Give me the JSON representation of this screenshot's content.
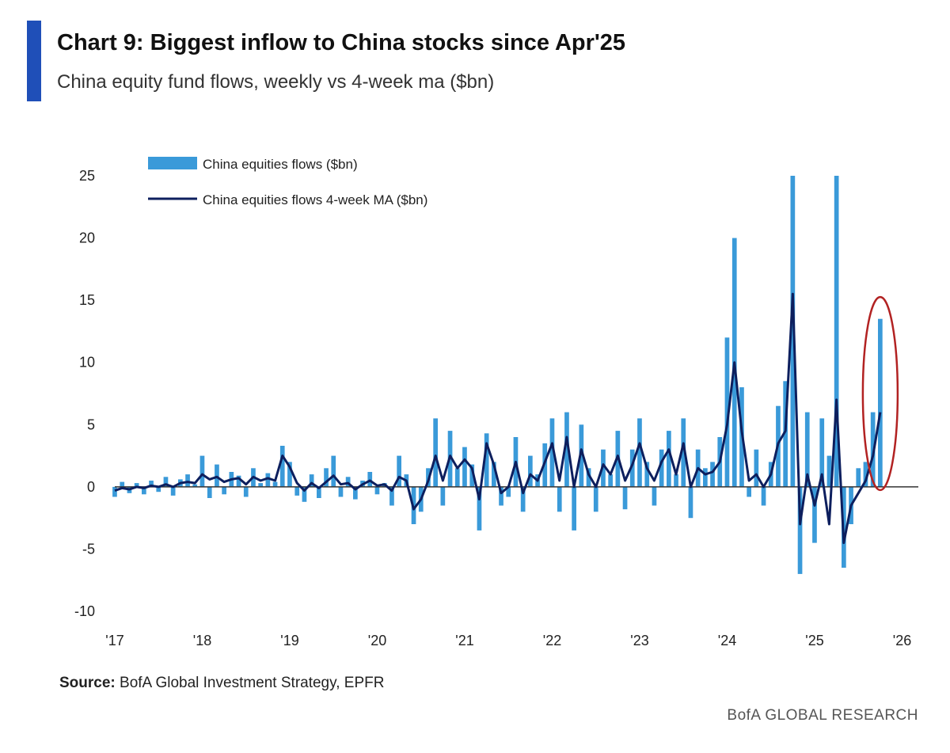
{
  "header": {
    "title": "Chart 9: Biggest inflow to China stocks since Apr'25",
    "subtitle": "China equity fund flows, weekly vs 4-week ma ($bn)",
    "accent_color": "#1f4fb8"
  },
  "footer": {
    "source_label": "Source:",
    "source_text": " BofA Global Investment Strategy, EPFR",
    "brand": "BofA GLOBAL RESEARCH"
  },
  "chart_data": {
    "type": "bar",
    "title": "Chart 9: Biggest inflow to China stocks since Apr'25",
    "subtitle": "China equity fund flows, weekly vs 4-week ma ($bn)",
    "xlabel": "",
    "ylabel": "",
    "ylim": [
      -10,
      25
    ],
    "xlim": [
      "2017-01",
      "2026-06"
    ],
    "y_ticks": [
      "25",
      "20",
      "15",
      "10",
      "5",
      "0",
      "-5",
      "-10"
    ],
    "x_ticks": [
      "'17",
      "'18",
      "'19",
      "'20",
      "'21",
      "'22",
      "'23",
      "'24",
      "'25",
      "'26"
    ],
    "grid": false,
    "legend_position": "top-left",
    "colors": {
      "weekly": "#3a9ad9",
      "ma": "#0d1f5e",
      "highlight": "#b22222"
    },
    "annotation": {
      "type": "ellipse-highlight",
      "x": "2025-10",
      "y_range": [
        0,
        15
      ]
    },
    "series": [
      {
        "name": "China equities flows ($bn)",
        "kind": "bar",
        "points": [
          [
            "2017-01",
            -0.8
          ],
          [
            "2017-02",
            0.4
          ],
          [
            "2017-03",
            -0.5
          ],
          [
            "2017-04",
            0.3
          ],
          [
            "2017-05",
            -0.6
          ],
          [
            "2017-06",
            0.5
          ],
          [
            "2017-07",
            -0.4
          ],
          [
            "2017-08",
            0.8
          ],
          [
            "2017-09",
            -0.7
          ],
          [
            "2017-10",
            0.6
          ],
          [
            "2017-11",
            1.0
          ],
          [
            "2017-12",
            0.2
          ],
          [
            "2018-01",
            2.5
          ],
          [
            "2018-02",
            -0.9
          ],
          [
            "2018-03",
            1.8
          ],
          [
            "2018-04",
            -0.6
          ],
          [
            "2018-05",
            1.2
          ],
          [
            "2018-06",
            0.9
          ],
          [
            "2018-07",
            -0.8
          ],
          [
            "2018-08",
            1.5
          ],
          [
            "2018-09",
            0.3
          ],
          [
            "2018-10",
            1.1
          ],
          [
            "2018-11",
            0.4
          ],
          [
            "2018-12",
            3.3
          ],
          [
            "2019-01",
            2.0
          ],
          [
            "2019-02",
            -0.7
          ],
          [
            "2019-03",
            -1.2
          ],
          [
            "2019-04",
            1.0
          ],
          [
            "2019-05",
            -0.9
          ],
          [
            "2019-06",
            1.5
          ],
          [
            "2019-07",
            2.5
          ],
          [
            "2019-08",
            -0.8
          ],
          [
            "2019-09",
            0.8
          ],
          [
            "2019-10",
            -1.0
          ],
          [
            "2019-11",
            0.5
          ],
          [
            "2019-12",
            1.2
          ],
          [
            "2020-01",
            -0.6
          ],
          [
            "2020-02",
            0.3
          ],
          [
            "2020-03",
            -1.5
          ],
          [
            "2020-04",
            2.5
          ],
          [
            "2020-05",
            1.0
          ],
          [
            "2020-06",
            -3.0
          ],
          [
            "2020-07",
            -2.0
          ],
          [
            "2020-08",
            1.5
          ],
          [
            "2020-09",
            5.5
          ],
          [
            "2020-10",
            -1.5
          ],
          [
            "2020-11",
            4.5
          ],
          [
            "2020-12",
            1.5
          ],
          [
            "2021-01",
            3.2
          ],
          [
            "2021-02",
            1.8
          ],
          [
            "2021-03",
            -3.5
          ],
          [
            "2021-04",
            4.3
          ],
          [
            "2021-05",
            2.0
          ],
          [
            "2021-06",
            -1.5
          ],
          [
            "2021-07",
            -0.8
          ],
          [
            "2021-08",
            4.0
          ],
          [
            "2021-09",
            -2.0
          ],
          [
            "2021-10",
            2.5
          ],
          [
            "2021-11",
            1.0
          ],
          [
            "2021-12",
            3.5
          ],
          [
            "2022-01",
            5.5
          ],
          [
            "2022-02",
            -2.0
          ],
          [
            "2022-03",
            6.0
          ],
          [
            "2022-04",
            -3.5
          ],
          [
            "2022-05",
            5.0
          ],
          [
            "2022-06",
            1.5
          ],
          [
            "2022-07",
            -2.0
          ],
          [
            "2022-08",
            3.0
          ],
          [
            "2022-09",
            1.0
          ],
          [
            "2022-10",
            4.5
          ],
          [
            "2022-11",
            -1.8
          ],
          [
            "2022-12",
            3.0
          ],
          [
            "2023-01",
            5.5
          ],
          [
            "2023-02",
            2.0
          ],
          [
            "2023-03",
            -1.5
          ],
          [
            "2023-04",
            3.0
          ],
          [
            "2023-05",
            4.5
          ],
          [
            "2023-06",
            1.0
          ],
          [
            "2023-07",
            5.5
          ],
          [
            "2023-08",
            -2.5
          ],
          [
            "2023-09",
            3.0
          ],
          [
            "2023-10",
            1.5
          ],
          [
            "2023-11",
            2.0
          ],
          [
            "2023-12",
            4.0
          ],
          [
            "2024-01",
            12.0
          ],
          [
            "2024-02",
            20.0
          ],
          [
            "2024-03",
            8.0
          ],
          [
            "2024-04",
            -0.8
          ],
          [
            "2024-05",
            3.0
          ],
          [
            "2024-06",
            -1.5
          ],
          [
            "2024-07",
            2.0
          ],
          [
            "2024-08",
            6.5
          ],
          [
            "2024-09",
            8.5
          ],
          [
            "2024-10",
            25.0
          ],
          [
            "2024-11",
            -7.0
          ],
          [
            "2024-12",
            6.0
          ],
          [
            "2025-01",
            -4.5
          ],
          [
            "2025-02",
            5.5
          ],
          [
            "2025-03",
            2.5
          ],
          [
            "2025-04",
            25.0
          ],
          [
            "2025-05",
            -6.5
          ],
          [
            "2025-06",
            -3.0
          ],
          [
            "2025-07",
            1.5
          ],
          [
            "2025-08",
            2.0
          ],
          [
            "2025-09",
            6.0
          ],
          [
            "2025-10",
            13.5
          ]
        ]
      },
      {
        "name": "China equities flows 4-week MA ($bn)",
        "kind": "line",
        "points": [
          [
            "2017-01",
            -0.3
          ],
          [
            "2017-02",
            -0.1
          ],
          [
            "2017-03",
            -0.2
          ],
          [
            "2017-04",
            0.0
          ],
          [
            "2017-05",
            -0.1
          ],
          [
            "2017-06",
            0.1
          ],
          [
            "2017-07",
            0.0
          ],
          [
            "2017-08",
            0.2
          ],
          [
            "2017-09",
            0.0
          ],
          [
            "2017-10",
            0.3
          ],
          [
            "2017-11",
            0.4
          ],
          [
            "2017-12",
            0.3
          ],
          [
            "2018-01",
            1.0
          ],
          [
            "2018-02",
            0.6
          ],
          [
            "2018-03",
            0.8
          ],
          [
            "2018-04",
            0.4
          ],
          [
            "2018-05",
            0.6
          ],
          [
            "2018-06",
            0.7
          ],
          [
            "2018-07",
            0.2
          ],
          [
            "2018-08",
            0.8
          ],
          [
            "2018-09",
            0.5
          ],
          [
            "2018-10",
            0.7
          ],
          [
            "2018-11",
            0.5
          ],
          [
            "2018-12",
            2.5
          ],
          [
            "2019-01",
            1.6
          ],
          [
            "2019-02",
            0.3
          ],
          [
            "2019-03",
            -0.3
          ],
          [
            "2019-04",
            0.3
          ],
          [
            "2019-05",
            -0.1
          ],
          [
            "2019-06",
            0.4
          ],
          [
            "2019-07",
            0.9
          ],
          [
            "2019-08",
            0.2
          ],
          [
            "2019-09",
            0.3
          ],
          [
            "2019-10",
            -0.2
          ],
          [
            "2019-11",
            0.2
          ],
          [
            "2019-12",
            0.5
          ],
          [
            "2020-01",
            0.1
          ],
          [
            "2020-02",
            0.2
          ],
          [
            "2020-03",
            -0.3
          ],
          [
            "2020-04",
            0.8
          ],
          [
            "2020-05",
            0.5
          ],
          [
            "2020-06",
            -1.8
          ],
          [
            "2020-07",
            -1.0
          ],
          [
            "2020-08",
            0.5
          ],
          [
            "2020-09",
            2.5
          ],
          [
            "2020-10",
            0.5
          ],
          [
            "2020-11",
            2.5
          ],
          [
            "2020-12",
            1.5
          ],
          [
            "2021-01",
            2.2
          ],
          [
            "2021-02",
            1.5
          ],
          [
            "2021-03",
            -1.0
          ],
          [
            "2021-04",
            3.5
          ],
          [
            "2021-05",
            1.8
          ],
          [
            "2021-06",
            -0.5
          ],
          [
            "2021-07",
            0.0
          ],
          [
            "2021-08",
            2.0
          ],
          [
            "2021-09",
            -0.5
          ],
          [
            "2021-10",
            1.0
          ],
          [
            "2021-11",
            0.5
          ],
          [
            "2021-12",
            2.0
          ],
          [
            "2022-01",
            3.5
          ],
          [
            "2022-02",
            0.5
          ],
          [
            "2022-03",
            4.0
          ],
          [
            "2022-04",
            0.0
          ],
          [
            "2022-05",
            3.0
          ],
          [
            "2022-06",
            1.0
          ],
          [
            "2022-07",
            0.0
          ],
          [
            "2022-08",
            1.8
          ],
          [
            "2022-09",
            1.0
          ],
          [
            "2022-10",
            2.5
          ],
          [
            "2022-11",
            0.5
          ],
          [
            "2022-12",
            1.8
          ],
          [
            "2023-01",
            3.5
          ],
          [
            "2023-02",
            1.5
          ],
          [
            "2023-03",
            0.5
          ],
          [
            "2023-04",
            2.0
          ],
          [
            "2023-05",
            3.0
          ],
          [
            "2023-06",
            1.0
          ],
          [
            "2023-07",
            3.5
          ],
          [
            "2023-08",
            0.0
          ],
          [
            "2023-09",
            1.5
          ],
          [
            "2023-10",
            1.0
          ],
          [
            "2023-11",
            1.2
          ],
          [
            "2023-12",
            2.0
          ],
          [
            "2024-01",
            5.0
          ],
          [
            "2024-02",
            10.0
          ],
          [
            "2024-03",
            4.5
          ],
          [
            "2024-04",
            0.5
          ],
          [
            "2024-05",
            1.0
          ],
          [
            "2024-06",
            0.0
          ],
          [
            "2024-07",
            1.0
          ],
          [
            "2024-08",
            3.5
          ],
          [
            "2024-09",
            4.5
          ],
          [
            "2024-10",
            15.5
          ],
          [
            "2024-11",
            -3.0
          ],
          [
            "2024-12",
            1.0
          ],
          [
            "2025-01",
            -1.5
          ],
          [
            "2025-02",
            1.0
          ],
          [
            "2025-03",
            -3.0
          ],
          [
            "2025-04",
            7.0
          ],
          [
            "2025-05",
            -4.5
          ],
          [
            "2025-06",
            -1.5
          ],
          [
            "2025-07",
            -0.5
          ],
          [
            "2025-08",
            0.5
          ],
          [
            "2025-09",
            2.5
          ],
          [
            "2025-10",
            6.0
          ]
        ]
      }
    ]
  }
}
